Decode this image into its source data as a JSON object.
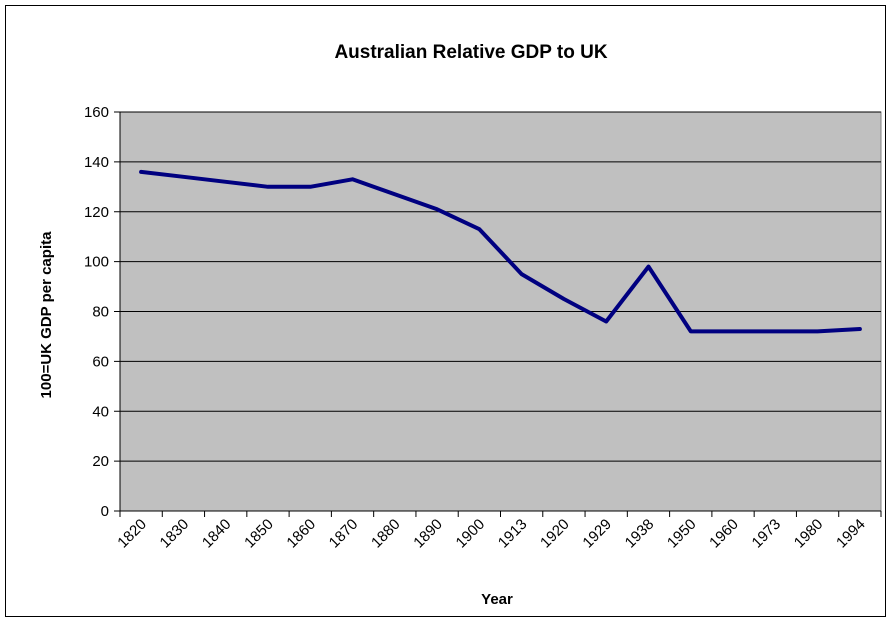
{
  "chart_data": {
    "type": "line",
    "title": "Australian Relative GDP to UK",
    "xlabel": "Year",
    "ylabel": "100=UK GDP per capita",
    "categories": [
      "1820",
      "1830",
      "1840",
      "1850",
      "1860",
      "1870",
      "1880",
      "1890",
      "1900",
      "1913",
      "1920",
      "1929",
      "1938",
      "1950",
      "1960",
      "1973",
      "1980",
      "1994"
    ],
    "series": [
      {
        "values": [
          136,
          134,
          132,
          130,
          130,
          133,
          127,
          121,
          113,
          95,
          85,
          76,
          98,
          72,
          72,
          72,
          72,
          73
        ],
        "color": "#000080"
      }
    ],
    "ylim": [
      0,
      160
    ],
    "yticks": [
      0,
      20,
      40,
      60,
      80,
      100,
      120,
      140,
      160
    ],
    "grid": true,
    "plot_background": "#c0c0c0",
    "legend": "none"
  }
}
